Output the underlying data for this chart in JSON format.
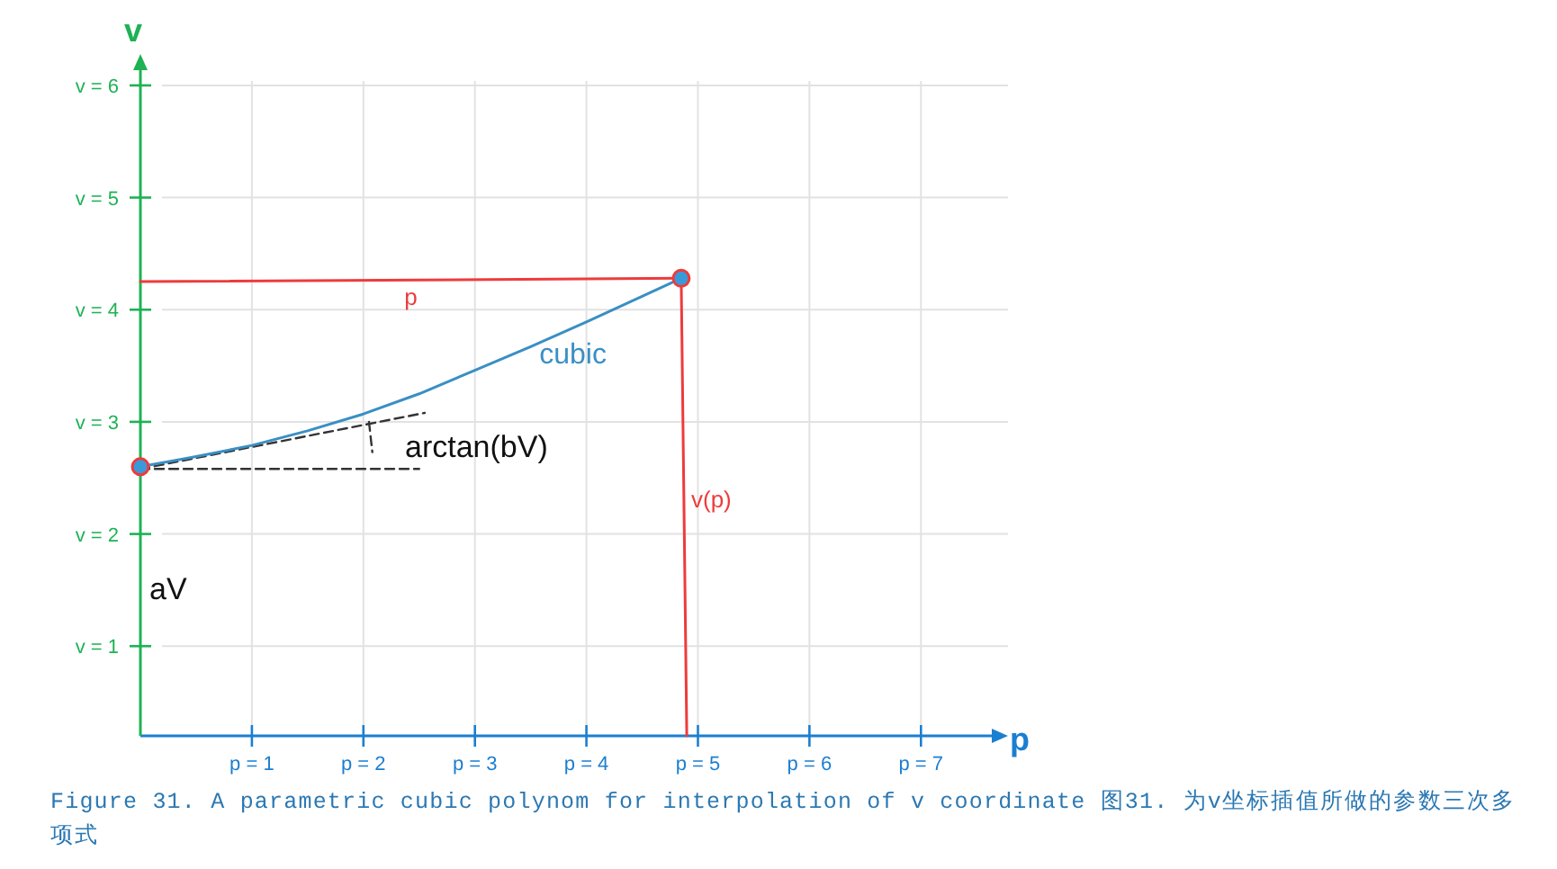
{
  "chart_data": {
    "type": "line",
    "xlabel": "p",
    "ylabel": "v",
    "xlim": [
      0,
      7.7
    ],
    "ylim": [
      0.2,
      6.2
    ],
    "xticks": [
      {
        "value": 1,
        "label": "p = 1"
      },
      {
        "value": 2,
        "label": "p = 2"
      },
      {
        "value": 3,
        "label": "p = 3"
      },
      {
        "value": 4,
        "label": "p = 4"
      },
      {
        "value": 5,
        "label": "p = 5"
      },
      {
        "value": 6,
        "label": "p = 6"
      },
      {
        "value": 7,
        "label": "p = 7"
      }
    ],
    "yticks": [
      {
        "value": 1,
        "label": "v = 1"
      },
      {
        "value": 2,
        "label": "v = 2"
      },
      {
        "value": 3,
        "label": "v = 3"
      },
      {
        "value": 4,
        "label": "v = 4"
      },
      {
        "value": 5,
        "label": "v = 5"
      },
      {
        "value": 6,
        "label": "v = 6"
      }
    ],
    "grid": true,
    "series": [
      {
        "name": "p",
        "color": "#ee3b3b",
        "line_style": "solid",
        "x": [
          0,
          4.85
        ],
        "values": [
          4.25,
          4.28
        ]
      },
      {
        "name": "v(p)",
        "color": "#ee3b3b",
        "line_style": "solid",
        "x": [
          4.85,
          4.9
        ],
        "values": [
          4.28,
          0.2
        ]
      },
      {
        "type": "line",
        "color": "#333333",
        "line_style": "dashed",
        "x": [
          0,
          2.55
        ],
        "values": [
          2.58,
          3.08
        ]
      },
      {
        "type": "line",
        "color": "#333333",
        "line_style": "dashed",
        "x": [
          0,
          2.5
        ],
        "values": [
          2.58,
          2.58
        ]
      },
      {
        "type": "line",
        "color": "#333333",
        "line_style": "dashed",
        "x": [
          2.05,
          2.08
        ],
        "values": [
          3.0,
          2.73
        ]
      },
      {
        "name": "cubic",
        "color": "#3a8fc4",
        "line_style": "solid",
        "x": [
          0,
          0.5,
          1,
          1.5,
          2,
          2.5,
          3,
          3.5,
          4,
          4.5,
          4.85
        ],
        "values": [
          2.6,
          2.69,
          2.79,
          2.92,
          3.07,
          3.25,
          3.46,
          3.67,
          3.89,
          4.12,
          4.28
        ]
      },
      {
        "type": "scatter",
        "marker": "circle",
        "color": "#3a9ad9",
        "x": [
          0,
          4.85
        ],
        "values": [
          2.6,
          4.28
        ]
      }
    ],
    "annotations": [
      "arctan(bV)",
      "aV",
      "Figure 31. A parametric cubic polynom for interpolation of v coordinate 图31. 为v坐标插值所做的参数三次多项式"
    ]
  }
}
